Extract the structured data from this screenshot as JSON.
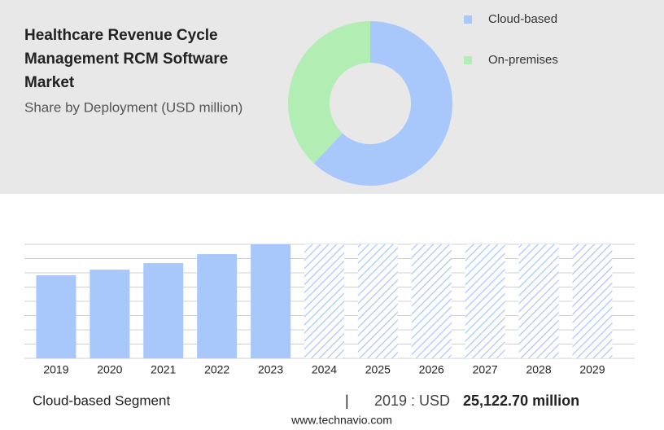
{
  "chart_data": [
    {
      "type": "pie",
      "donut": true,
      "title": "Healthcare Revenue Cycle Management RCM Software Market",
      "subtitle": "Share by Deployment (USD million)",
      "categories": [
        "Cloud-based",
        "On-premises"
      ],
      "values": [
        62,
        38
      ],
      "colors": [
        "#a8c8fc",
        "#b2eeb4"
      ]
    },
    {
      "type": "bar",
      "categories": [
        "2019",
        "2020",
        "2021",
        "2022",
        "2023",
        "2024",
        "2025",
        "2026",
        "2027",
        "2028",
        "2029"
      ],
      "values": [
        25122.7,
        26845,
        28817,
        31526,
        34500,
        null,
        null,
        null,
        null,
        null,
        null
      ],
      "color": "#a8c8fc",
      "ylim": [
        0,
        34500
      ],
      "yticks": [
        0,
        4312.5,
        8625,
        12937.5,
        17250,
        21562.5,
        25875,
        30187.5,
        34500
      ],
      "grid": true
    }
  ],
  "footer": {
    "segment": "Cloud-based Segment",
    "separator": "|",
    "year_label": "2019 : USD",
    "value_label": "25,122.70 million",
    "source": "www.technavio.com"
  }
}
